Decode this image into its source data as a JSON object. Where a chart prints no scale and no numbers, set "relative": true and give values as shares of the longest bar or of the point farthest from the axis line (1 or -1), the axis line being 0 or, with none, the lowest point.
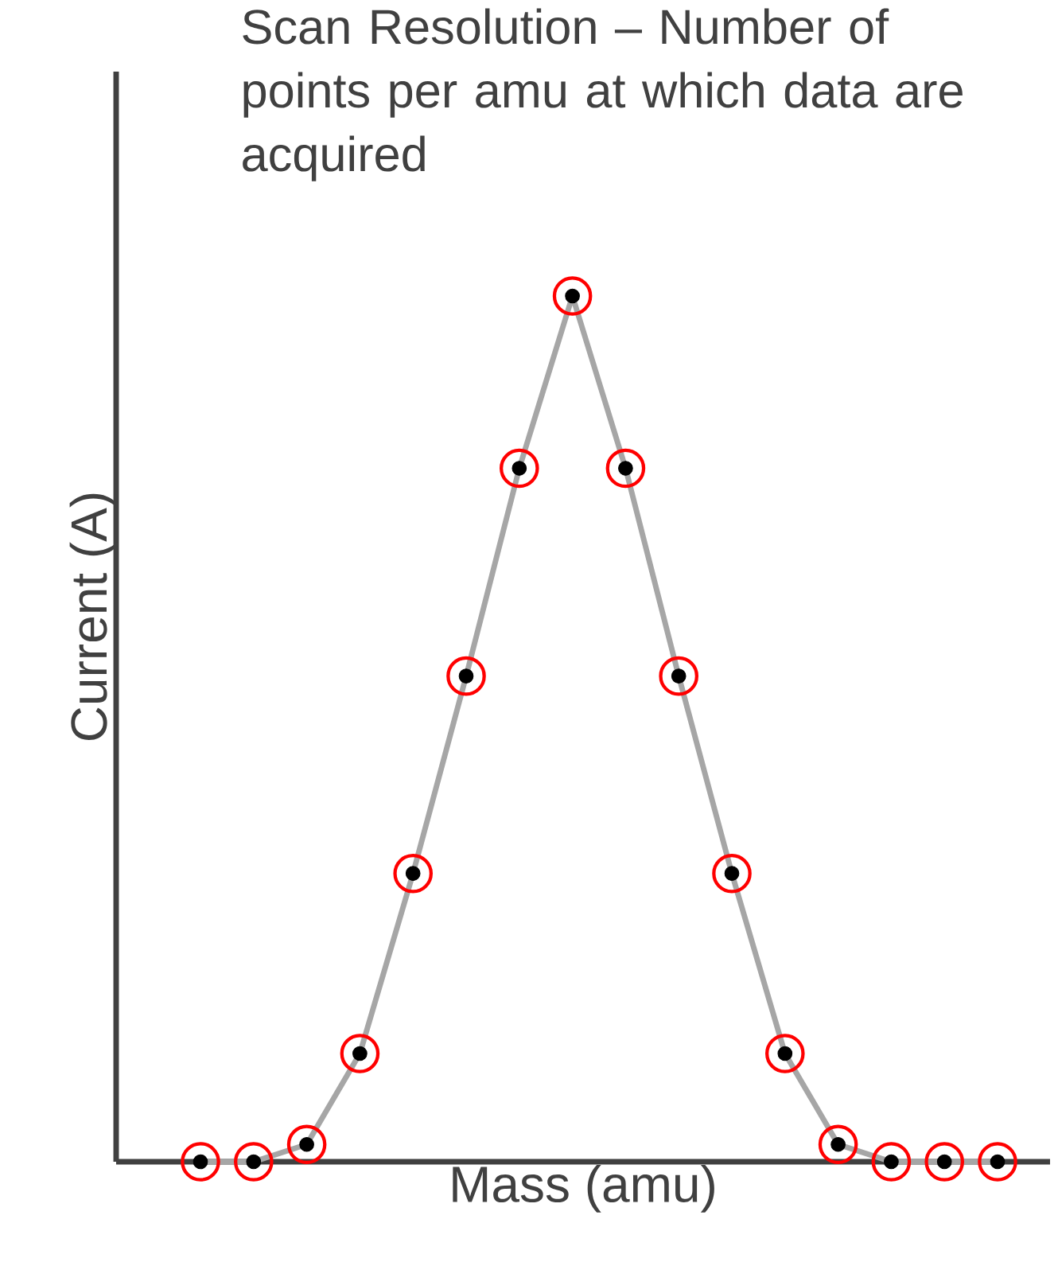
{
  "chart_data": {
    "type": "line",
    "relative": true,
    "title": "Scan Resolution – Number of points per amu at which data are acquired",
    "xlabel": "Mass (amu)",
    "ylabel": "Current (A)",
    "marker": "circle",
    "line_style": "solid",
    "categories": [
      null,
      null,
      null,
      null,
      null,
      null,
      null,
      null,
      null,
      null,
      null,
      null,
      null,
      null,
      null,
      null
    ],
    "series": [
      {
        "color": "#a6a6a6",
        "values": [
          0,
          0,
          0.02,
          0.125,
          0.333,
          0.561,
          0.801,
          1,
          0.801,
          0.561,
          0.333,
          0.125,
          0.02,
          0,
          0,
          0
        ]
      }
    ]
  }
}
